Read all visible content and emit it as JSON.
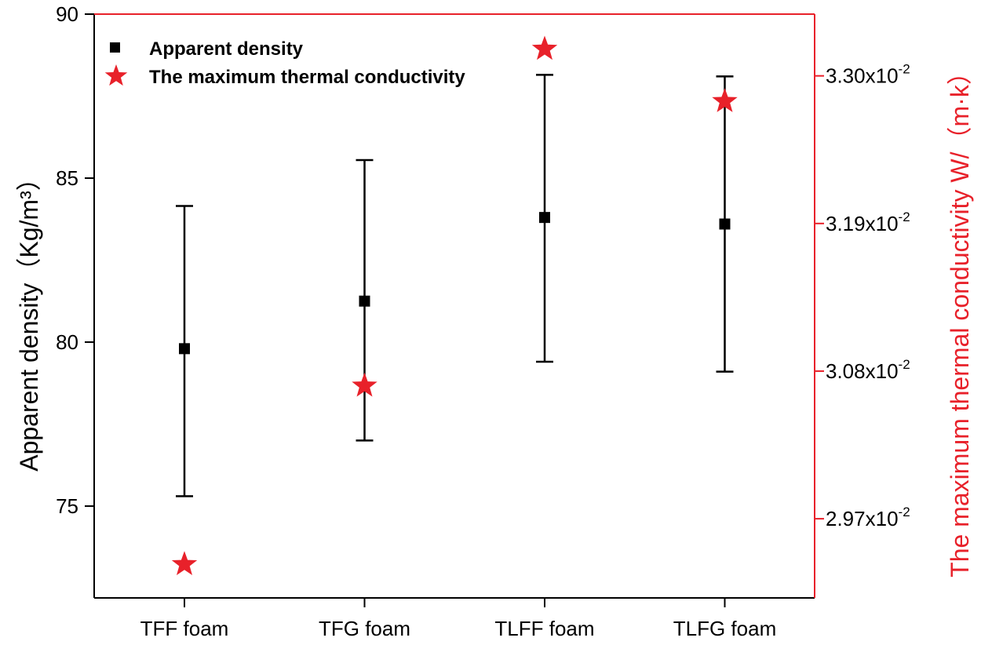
{
  "chart_data": {
    "type": "scatter",
    "title": "",
    "categories": [
      "TFF foam",
      "TFG foam",
      "TLFF foam",
      "TLFG foam"
    ],
    "left_axis": {
      "label_main": "Apparent density",
      "label_unit": "（Kg/m³）",
      "ylim": [
        72.2,
        90
      ],
      "ticks": [
        75,
        80,
        85,
        90
      ],
      "tick_labels": [
        "75",
        "80",
        "85",
        "90"
      ]
    },
    "right_axis": {
      "label": "The maximum thermal conductivity W/（m·k）",
      "ylim": [
        0.02911,
        0.03346
      ],
      "ticks": [
        0.0297,
        0.0308,
        0.0319,
        0.033
      ],
      "tick_labels": [
        {
          "mantissa": "2.97x10",
          "exp": "-2"
        },
        {
          "mantissa": "3.08x10",
          "exp": "-2"
        },
        {
          "mantissa": "3.19x10",
          "exp": "-2"
        },
        {
          "mantissa": "3.30x10",
          "exp": "-2"
        }
      ]
    },
    "series": [
      {
        "name": "Apparent density",
        "marker": "square",
        "color": "#000000",
        "axis": "left",
        "values": [
          79.8,
          81.25,
          83.8,
          83.6
        ],
        "error_low": [
          75.3,
          77.0,
          79.4,
          79.1
        ],
        "error_high": [
          84.15,
          85.55,
          88.15,
          88.1
        ]
      },
      {
        "name": "The maximum thermal conductivity",
        "marker": "star",
        "color": "#e8212a",
        "axis": "right",
        "values": [
          0.02936,
          0.03069,
          0.0332,
          0.03281
        ]
      }
    ],
    "legend": {
      "position": "top-left",
      "entries": [
        "Apparent density",
        "The maximum thermal conductivity"
      ]
    }
  }
}
